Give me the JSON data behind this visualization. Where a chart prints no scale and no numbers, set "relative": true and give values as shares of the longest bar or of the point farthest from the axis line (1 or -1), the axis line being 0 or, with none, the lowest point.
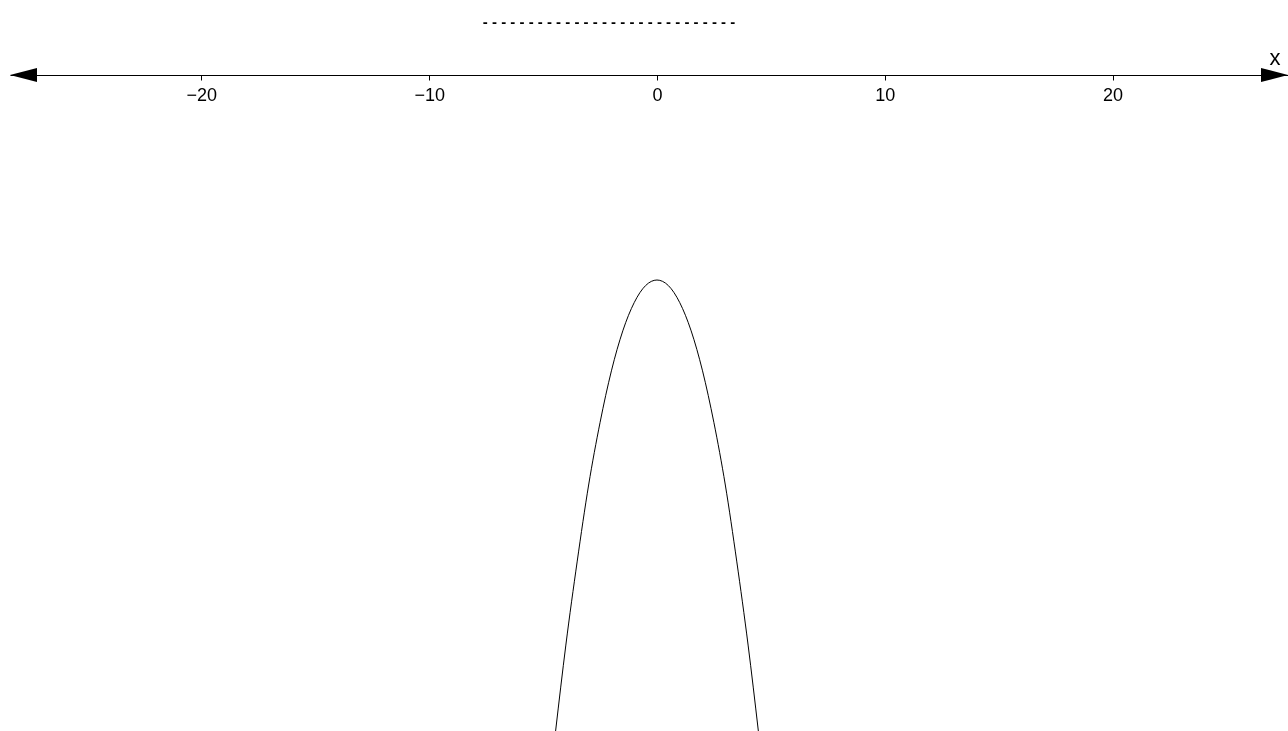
{
  "chart_data": {
    "type": "line",
    "title": "- - - - - - - -   - - - - - - - - - - - - - - - - - - - -",
    "xlabel": "x",
    "relative": true,
    "x": [
      -4.45,
      -4,
      -3.5,
      -3,
      -2.5,
      -2,
      -1.5,
      -1,
      -0.5,
      0,
      0.5,
      1,
      1.5,
      2,
      2.5,
      3,
      3.5,
      4,
      4.45
    ],
    "series": [
      {
        "color": "#000000",
        "values": [
          -1,
          -0.869,
          -0.741,
          -0.625,
          -0.53,
          -0.451,
          -0.39,
          -0.347,
          -0.321,
          -0.3125,
          -0.321,
          -0.347,
          -0.39,
          -0.451,
          -0.53,
          -0.625,
          -0.741,
          -0.869,
          -1
        ]
      }
    ],
    "xlim": [
      -28.4,
      27.7
    ],
    "xticks": [
      -20,
      -10,
      0,
      10,
      20
    ],
    "grid": false,
    "legend": false,
    "marker": "none",
    "line_style": "solid"
  }
}
